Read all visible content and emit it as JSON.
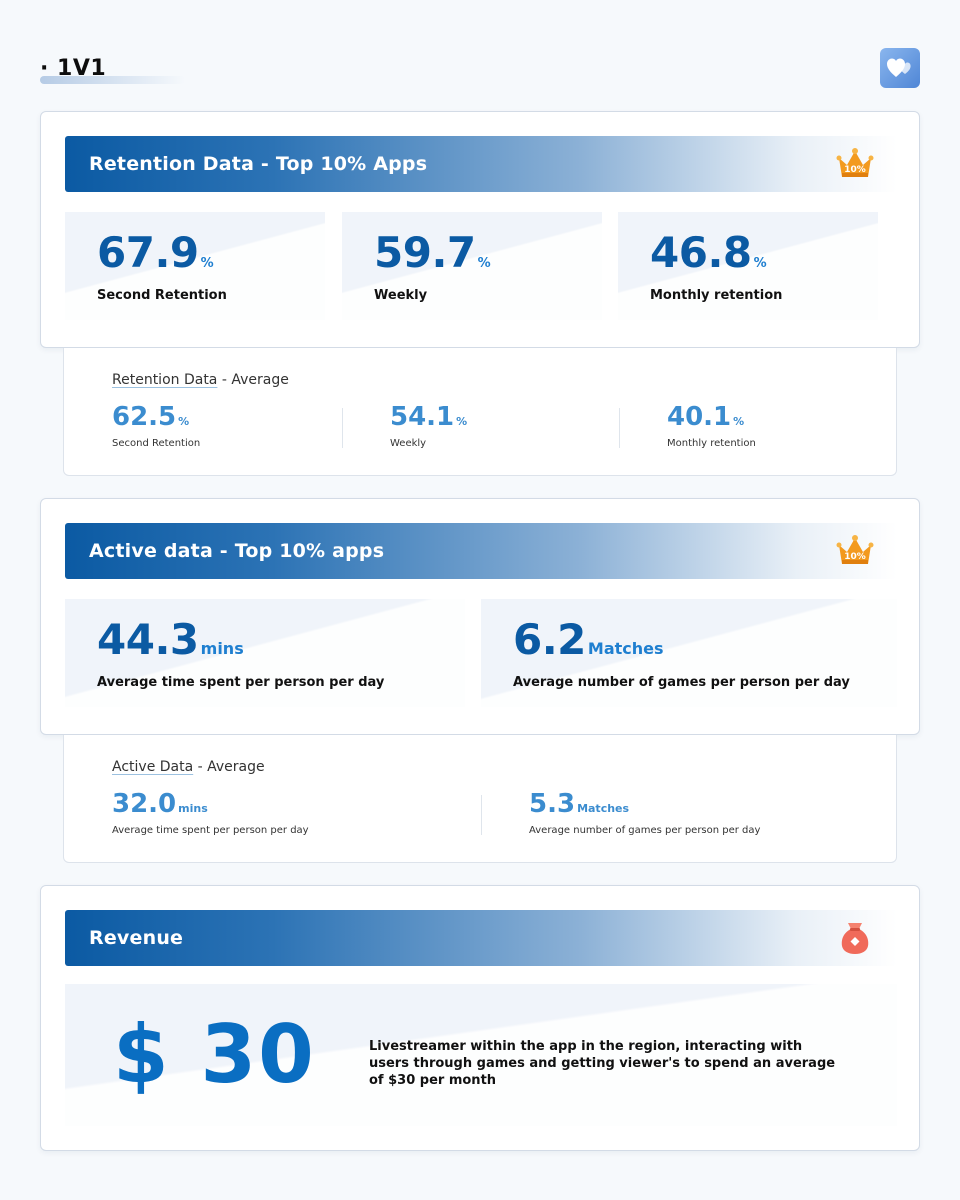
{
  "header": {
    "title": "· 1V1",
    "logo_icon": "hearts-icon"
  },
  "retention_top": {
    "title": "Retention Data - Top 10% Apps",
    "badge_icon": "crown-icon",
    "badge_text": "10%",
    "metrics": [
      {
        "value": "67.9",
        "unit": "%",
        "label": "Second Retention"
      },
      {
        "value": "59.7",
        "unit": "%",
        "label": "Weekly"
      },
      {
        "value": "46.8",
        "unit": "%",
        "label": "Monthly retention"
      }
    ]
  },
  "retention_avg": {
    "title_underlined": "Retention Data",
    "title_rest": " - Average",
    "metrics": [
      {
        "value": "62.5",
        "unit": "%",
        "label": "Second Retention"
      },
      {
        "value": "54.1",
        "unit": "%",
        "label": "Weekly"
      },
      {
        "value": "40.1",
        "unit": "%",
        "label": "Monthly retention"
      }
    ]
  },
  "active_top": {
    "title": "Active data - Top 10% apps",
    "badge_icon": "crown-icon",
    "badge_text": "10%",
    "metrics": [
      {
        "value": "44.3",
        "unit": "mins",
        "label": "Average time spent per person per day"
      },
      {
        "value": "6.2",
        "unit": "Matches",
        "label": "Average number of games per person per day"
      }
    ]
  },
  "active_avg": {
    "title_underlined": "Active Data",
    "title_rest": " - Average",
    "metrics": [
      {
        "value": "32.0",
        "unit": "mins",
        "label": "Average time spent per person per day"
      },
      {
        "value": "5.3",
        "unit": "Matches",
        "label": "Average number of games per person per day"
      }
    ]
  },
  "revenue": {
    "title": "Revenue",
    "icon": "money-bag-icon",
    "value": "$ 30",
    "description": "Livestreamer within the app in the region, interacting with users through games and getting viewer's to spend an average of $30 per month"
  },
  "colors": {
    "primary": "#0b5aa3",
    "accent": "#1f7fd0",
    "average": "#3b8ccf",
    "crown": "#f39a1e",
    "bag": "#f06a5a"
  }
}
